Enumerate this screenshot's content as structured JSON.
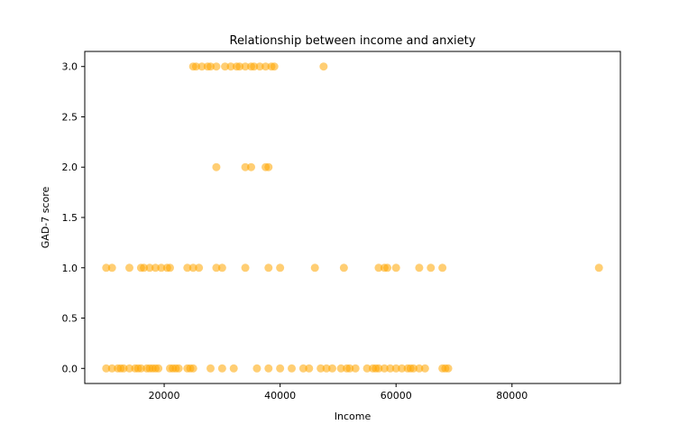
{
  "chart_data": {
    "type": "scatter",
    "title": "Relationship between income and anxiety",
    "xlabel": "Income",
    "ylabel": "GAD-7 score",
    "xlim": [
      6300,
      98700
    ],
    "ylim": [
      -0.15,
      3.15
    ],
    "xticks": [
      20000,
      40000,
      60000,
      80000
    ],
    "xtick_labels": [
      "20000",
      "40000",
      "60000",
      "80000"
    ],
    "yticks": [
      0.0,
      0.5,
      1.0,
      1.5,
      2.0,
      2.5,
      3.0
    ],
    "ytick_labels": [
      "0.0",
      "0.5",
      "1.0",
      "1.5",
      "2.0",
      "2.5",
      "3.0"
    ],
    "grid": false,
    "marker_color": "#ffa500",
    "marker_alpha": 0.55,
    "points": [
      {
        "x": 10000,
        "y": 0
      },
      {
        "x": 11000,
        "y": 0
      },
      {
        "x": 12000,
        "y": 0
      },
      {
        "x": 12500,
        "y": 0
      },
      {
        "x": 13000,
        "y": 0
      },
      {
        "x": 14000,
        "y": 0
      },
      {
        "x": 15000,
        "y": 0
      },
      {
        "x": 15500,
        "y": 0
      },
      {
        "x": 16000,
        "y": 0
      },
      {
        "x": 17000,
        "y": 0
      },
      {
        "x": 17500,
        "y": 0
      },
      {
        "x": 18000,
        "y": 0
      },
      {
        "x": 18500,
        "y": 0
      },
      {
        "x": 19000,
        "y": 0
      },
      {
        "x": 21000,
        "y": 0
      },
      {
        "x": 21500,
        "y": 0
      },
      {
        "x": 22000,
        "y": 0
      },
      {
        "x": 22500,
        "y": 0
      },
      {
        "x": 24000,
        "y": 0
      },
      {
        "x": 24500,
        "y": 0
      },
      {
        "x": 25000,
        "y": 0
      },
      {
        "x": 28000,
        "y": 0
      },
      {
        "x": 30000,
        "y": 0
      },
      {
        "x": 32000,
        "y": 0
      },
      {
        "x": 36000,
        "y": 0
      },
      {
        "x": 38000,
        "y": 0
      },
      {
        "x": 40000,
        "y": 0
      },
      {
        "x": 42000,
        "y": 0
      },
      {
        "x": 44000,
        "y": 0
      },
      {
        "x": 45000,
        "y": 0
      },
      {
        "x": 47000,
        "y": 0
      },
      {
        "x": 48000,
        "y": 0
      },
      {
        "x": 49000,
        "y": 0
      },
      {
        "x": 50500,
        "y": 0
      },
      {
        "x": 51500,
        "y": 0
      },
      {
        "x": 52000,
        "y": 0
      },
      {
        "x": 53000,
        "y": 0
      },
      {
        "x": 55000,
        "y": 0
      },
      {
        "x": 56000,
        "y": 0
      },
      {
        "x": 56500,
        "y": 0
      },
      {
        "x": 57000,
        "y": 0
      },
      {
        "x": 58000,
        "y": 0
      },
      {
        "x": 59000,
        "y": 0
      },
      {
        "x": 60000,
        "y": 0
      },
      {
        "x": 61000,
        "y": 0
      },
      {
        "x": 62000,
        "y": 0
      },
      {
        "x": 62500,
        "y": 0
      },
      {
        "x": 63000,
        "y": 0
      },
      {
        "x": 64000,
        "y": 0
      },
      {
        "x": 65000,
        "y": 0
      },
      {
        "x": 68000,
        "y": 0
      },
      {
        "x": 68500,
        "y": 0
      },
      {
        "x": 69000,
        "y": 0
      },
      {
        "x": 10000,
        "y": 1
      },
      {
        "x": 11000,
        "y": 1
      },
      {
        "x": 14000,
        "y": 1
      },
      {
        "x": 16000,
        "y": 1
      },
      {
        "x": 16500,
        "y": 1
      },
      {
        "x": 17500,
        "y": 1
      },
      {
        "x": 18500,
        "y": 1
      },
      {
        "x": 19500,
        "y": 1
      },
      {
        "x": 20500,
        "y": 1
      },
      {
        "x": 21000,
        "y": 1
      },
      {
        "x": 24000,
        "y": 1
      },
      {
        "x": 25000,
        "y": 1
      },
      {
        "x": 26000,
        "y": 1
      },
      {
        "x": 29000,
        "y": 1
      },
      {
        "x": 30000,
        "y": 1
      },
      {
        "x": 34000,
        "y": 1
      },
      {
        "x": 38000,
        "y": 1
      },
      {
        "x": 40000,
        "y": 1
      },
      {
        "x": 46000,
        "y": 1
      },
      {
        "x": 51000,
        "y": 1
      },
      {
        "x": 57000,
        "y": 1
      },
      {
        "x": 58000,
        "y": 1
      },
      {
        "x": 58500,
        "y": 1
      },
      {
        "x": 60000,
        "y": 1
      },
      {
        "x": 64000,
        "y": 1
      },
      {
        "x": 66000,
        "y": 1
      },
      {
        "x": 68000,
        "y": 1
      },
      {
        "x": 95000,
        "y": 1
      },
      {
        "x": 29000,
        "y": 2
      },
      {
        "x": 34000,
        "y": 2
      },
      {
        "x": 35000,
        "y": 2
      },
      {
        "x": 37500,
        "y": 2
      },
      {
        "x": 38000,
        "y": 2
      },
      {
        "x": 25000,
        "y": 3
      },
      {
        "x": 25500,
        "y": 3
      },
      {
        "x": 26500,
        "y": 3
      },
      {
        "x": 27500,
        "y": 3
      },
      {
        "x": 28000,
        "y": 3
      },
      {
        "x": 29000,
        "y": 3
      },
      {
        "x": 30500,
        "y": 3
      },
      {
        "x": 31500,
        "y": 3
      },
      {
        "x": 32500,
        "y": 3
      },
      {
        "x": 33000,
        "y": 3
      },
      {
        "x": 34000,
        "y": 3
      },
      {
        "x": 35000,
        "y": 3
      },
      {
        "x": 35500,
        "y": 3
      },
      {
        "x": 36500,
        "y": 3
      },
      {
        "x": 37500,
        "y": 3
      },
      {
        "x": 38500,
        "y": 3
      },
      {
        "x": 39000,
        "y": 3
      },
      {
        "x": 47500,
        "y": 3
      }
    ]
  }
}
